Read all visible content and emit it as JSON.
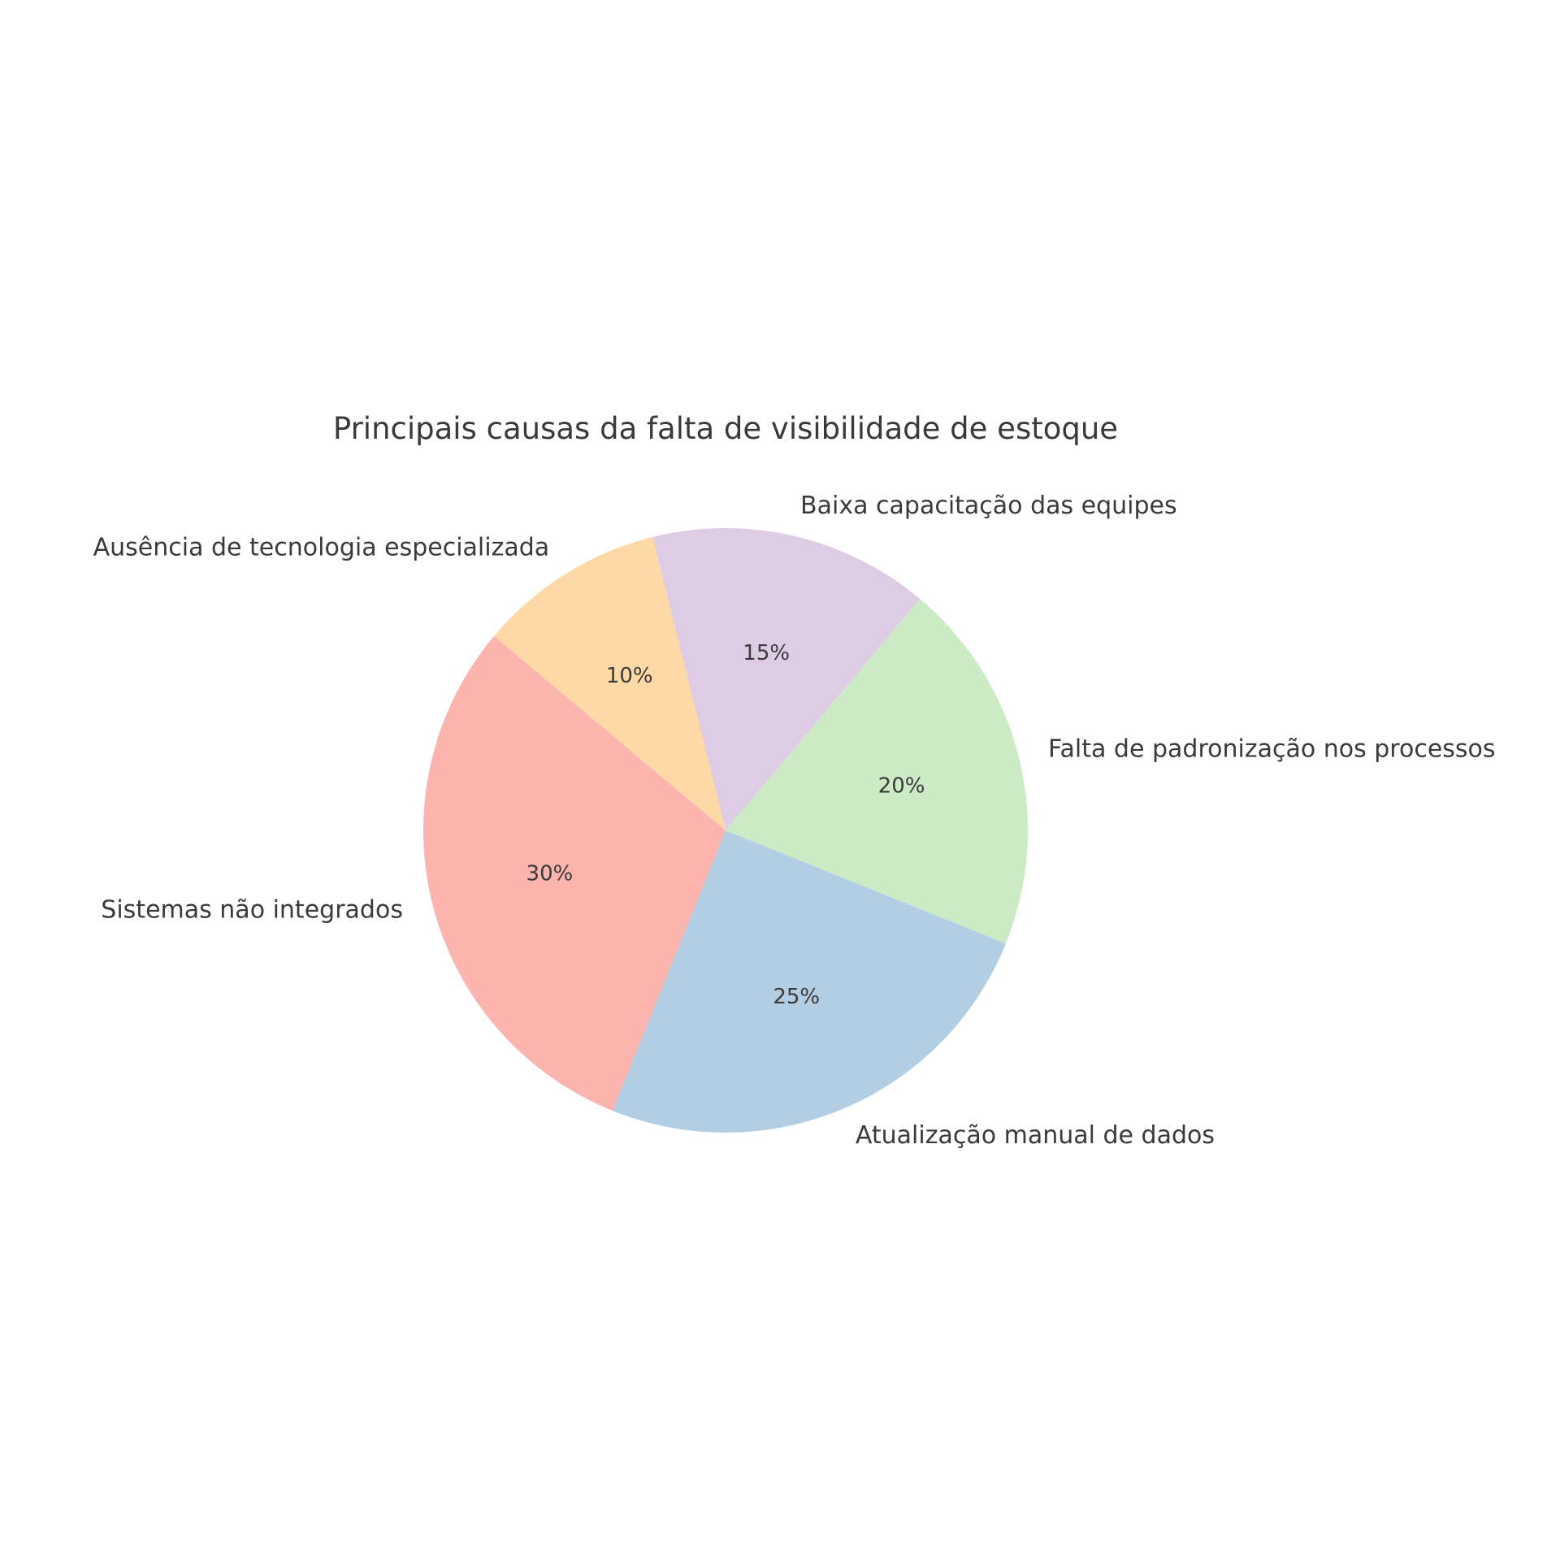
{
  "chart_data": {
    "type": "pie",
    "title": "Principais causas da falta de visibilidade de estoque",
    "categories": [
      "Sistemas não integrados",
      "Atualização manual de dados",
      "Falta de padronização nos processos",
      "Baixa capacitação das equipes",
      "Ausência de tecnologia especializada"
    ],
    "values": [
      30,
      25,
      20,
      15,
      10
    ],
    "pct_labels": [
      "30%",
      "25%",
      "20%",
      "15%",
      "10%"
    ],
    "colors": [
      "#fbb4ae",
      "#b3cde3",
      "#ccebc5",
      "#decbe4",
      "#fed9a6"
    ],
    "start_angle": 140,
    "direction": "counterclockwise"
  }
}
